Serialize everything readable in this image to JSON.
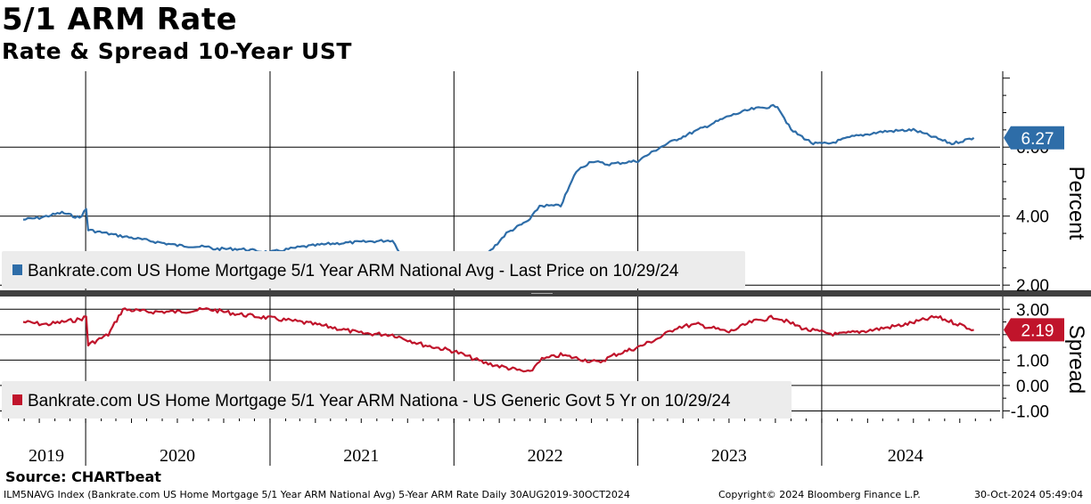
{
  "header": {
    "title": "5/1 ARM Rate",
    "subtitle": "Rate & Spread 10-Year UST"
  },
  "footer": {
    "source": "Source: CHARTbeat",
    "index_info": "ILM5NAVG Index (Bankrate.com US Home Mortgage 5/1 Year ARM National Avg) 5-Year ARM Rate  Daily 30AUG2019-30OCT2024",
    "copyright": "Copyright© 2024 Bloomberg Finance L.P.",
    "timestamp": "30-Oct-2024 05:49:04"
  },
  "colors": {
    "rate_line": "#2e6da8",
    "spread_line": "#c0142b",
    "legend_bg": "#ececec",
    "divider": "#404040"
  },
  "chart_data": [
    {
      "type": "line",
      "panel": "top",
      "ylabel": "Percent",
      "y_ticks": [
        "2.00",
        "4.00",
        "6.00"
      ],
      "ylim": [
        1.85,
        8.2
      ],
      "x_tick_labels": [
        "2019",
        "2020",
        "2021",
        "2022",
        "2023",
        "2024"
      ],
      "last_value_label": "6.27",
      "series": [
        {
          "name": "Bankrate.com US Home Mortgage 5/1 Year ARM National Avg - Last Price on 10/29/24",
          "x": [
            "2019-08-30",
            "2019-10-01",
            "2019-11-15",
            "2019-12-20",
            "2020-01-02",
            "2020-01-06",
            "2020-03-01",
            "2020-05-01",
            "2020-07-01",
            "2020-09-01",
            "2020-09-10",
            "2020-11-01",
            "2021-01-01",
            "2021-03-01",
            "2021-05-01",
            "2021-07-01",
            "2021-09-01",
            "2021-09-20",
            "2021-11-01",
            "2022-01-01",
            "2022-02-15",
            "2022-03-15",
            "2022-04-15",
            "2022-06-01",
            "2022-06-20",
            "2022-08-01",
            "2022-09-01",
            "2022-10-01",
            "2022-11-01",
            "2023-01-01",
            "2023-02-15",
            "2023-03-15",
            "2023-05-01",
            "2023-07-01",
            "2023-08-15",
            "2023-10-05",
            "2023-11-01",
            "2023-12-15",
            "2024-01-15",
            "2024-03-01",
            "2024-05-01",
            "2024-07-01",
            "2024-09-15",
            "2024-10-29"
          ],
          "values": [
            3.9,
            3.95,
            4.1,
            3.95,
            4.2,
            3.6,
            3.45,
            3.3,
            3.15,
            3.1,
            3.05,
            3.05,
            2.95,
            3.1,
            3.2,
            3.25,
            3.3,
            2.85,
            2.8,
            2.75,
            2.8,
            3.0,
            3.5,
            3.9,
            4.3,
            4.3,
            5.3,
            5.6,
            5.5,
            5.6,
            6.0,
            6.2,
            6.5,
            6.9,
            7.1,
            7.2,
            6.5,
            6.1,
            6.1,
            6.3,
            6.45,
            6.5,
            6.1,
            6.27
          ]
        }
      ]
    },
    {
      "type": "line",
      "panel": "bottom",
      "ylabel": "Spread",
      "y_ticks": [
        "-1.00",
        "0.00",
        "1.00",
        "2.00",
        "3.00"
      ],
      "ylim": [
        -1.3,
        3.5
      ],
      "last_value_label": "2.19",
      "series": [
        {
          "name": "Bankrate.com US Home Mortgage 5/1 Year ARM Nationa - US Generic Govt 5 Yr on 10/29/24",
          "x": [
            "2019-08-30",
            "2019-10-15",
            "2019-12-20",
            "2020-01-02",
            "2020-01-06",
            "2020-02-15",
            "2020-03-15",
            "2020-05-01",
            "2020-07-01",
            "2020-09-01",
            "2020-11-01",
            "2021-01-01",
            "2021-03-01",
            "2021-05-01",
            "2021-07-01",
            "2021-09-01",
            "2021-11-01",
            "2022-01-01",
            "2022-03-01",
            "2022-04-15",
            "2022-06-01",
            "2022-06-20",
            "2022-08-01",
            "2022-10-15",
            "2022-11-15",
            "2023-01-01",
            "2023-02-15",
            "2023-03-20",
            "2023-05-01",
            "2023-07-01",
            "2023-08-15",
            "2023-10-01",
            "2023-12-01",
            "2024-02-01",
            "2024-04-15",
            "2024-06-15",
            "2024-08-15",
            "2024-10-01",
            "2024-10-29"
          ],
          "values": [
            2.5,
            2.4,
            2.6,
            2.7,
            1.6,
            2.0,
            3.0,
            2.9,
            2.9,
            3.0,
            2.8,
            2.65,
            2.5,
            2.3,
            2.05,
            2.0,
            1.6,
            1.35,
            0.9,
            0.7,
            0.5,
            1.0,
            1.2,
            0.9,
            1.2,
            1.5,
            1.9,
            2.3,
            2.4,
            2.1,
            2.5,
            2.7,
            2.2,
            2.0,
            2.2,
            2.4,
            2.7,
            2.4,
            2.19
          ]
        }
      ]
    }
  ]
}
